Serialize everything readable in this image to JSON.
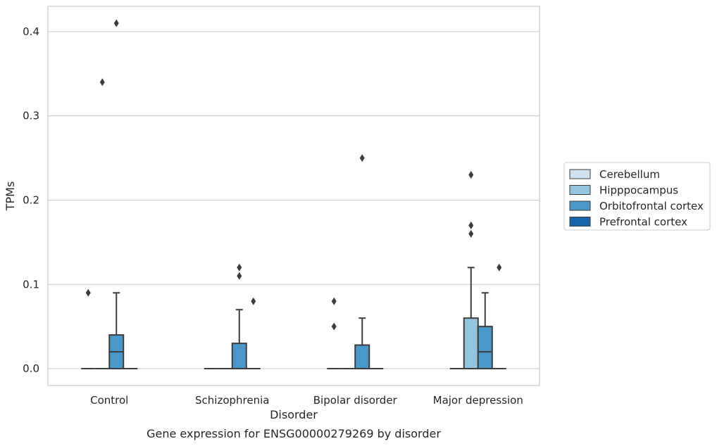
{
  "chart_data": {
    "type": "box",
    "title": "",
    "caption": "Gene expression for ENSG00000279269 by disorder",
    "xlabel": "Disorder",
    "ylabel": "TPMs",
    "ylim": [
      -0.02,
      0.43
    ],
    "yticks": [
      "0.0",
      "0.1",
      "0.2",
      "0.3",
      "0.4"
    ],
    "ytick_values": [
      0.0,
      0.1,
      0.2,
      0.3,
      0.4
    ],
    "grid": "horizontal",
    "legend_position": "right",
    "categories": [
      "Control",
      "Schizophrenia",
      "Bipolar disorder",
      "Major depression"
    ],
    "series": [
      {
        "name": "Cerebellum",
        "color": "#d0e1f2",
        "boxes": [
          {
            "q1": 0,
            "median": 0,
            "q3": 0,
            "whisker_low": 0,
            "whisker_high": 0,
            "outliers": [
              0.09
            ]
          },
          {
            "q1": 0,
            "median": 0,
            "q3": 0,
            "whisker_low": 0,
            "whisker_high": 0,
            "outliers": []
          },
          {
            "q1": 0,
            "median": 0,
            "q3": 0,
            "whisker_low": 0,
            "whisker_high": 0,
            "outliers": [
              0.05,
              0.08
            ]
          },
          {
            "q1": 0,
            "median": 0,
            "q3": 0,
            "whisker_low": 0,
            "whisker_high": 0,
            "outliers": []
          }
        ]
      },
      {
        "name": "Hipppocampus",
        "color": "#94c4df",
        "boxes": [
          {
            "q1": 0,
            "median": 0,
            "q3": 0,
            "whisker_low": 0,
            "whisker_high": 0,
            "outliers": [
              0.34
            ]
          },
          {
            "q1": 0,
            "median": 0,
            "q3": 0,
            "whisker_low": 0,
            "whisker_high": 0,
            "outliers": []
          },
          {
            "q1": 0,
            "median": 0,
            "q3": 0,
            "whisker_low": 0,
            "whisker_high": 0,
            "outliers": []
          },
          {
            "q1": 0,
            "median": 0,
            "q3": 0.06,
            "whisker_low": 0,
            "whisker_high": 0.12,
            "outliers": [
              0.16,
              0.17,
              0.23
            ]
          }
        ]
      },
      {
        "name": "Orbitofrontal cortex",
        "color": "#4a98c9",
        "boxes": [
          {
            "q1": 0,
            "median": 0.02,
            "q3": 0.04,
            "whisker_low": 0,
            "whisker_high": 0.09,
            "outliers": [
              0.41
            ]
          },
          {
            "q1": 0,
            "median": 0,
            "q3": 0.03,
            "whisker_low": 0,
            "whisker_high": 0.07,
            "outliers": [
              0.11,
              0.12
            ]
          },
          {
            "q1": 0,
            "median": 0,
            "q3": 0.028,
            "whisker_low": 0,
            "whisker_high": 0.06,
            "outliers": [
              0.25
            ]
          },
          {
            "q1": 0,
            "median": 0.02,
            "q3": 0.05,
            "whisker_low": 0,
            "whisker_high": 0.09,
            "outliers": []
          }
        ]
      },
      {
        "name": "Prefrontal cortex",
        "color": "#1764ab",
        "boxes": [
          {
            "q1": 0,
            "median": 0,
            "q3": 0,
            "whisker_low": 0,
            "whisker_high": 0,
            "outliers": []
          },
          {
            "q1": 0,
            "median": 0,
            "q3": 0,
            "whisker_low": 0,
            "whisker_high": 0,
            "outliers": [
              0.08
            ]
          },
          {
            "q1": 0,
            "median": 0,
            "q3": 0,
            "whisker_low": 0,
            "whisker_high": 0,
            "outliers": []
          },
          {
            "q1": 0,
            "median": 0,
            "q3": 0,
            "whisker_low": 0,
            "whisker_high": 0,
            "outliers": [
              0.12
            ]
          }
        ]
      }
    ]
  }
}
